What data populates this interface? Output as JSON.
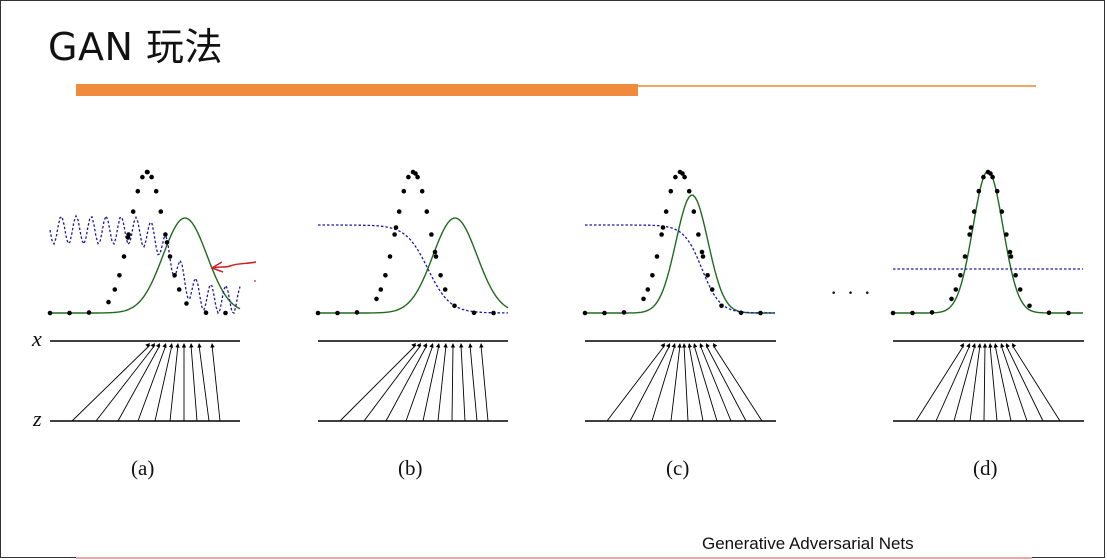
{
  "slide": {
    "title": "GAN 玩法",
    "footer": "Generative Adversarial Nets",
    "ellipsis": "· · ·"
  },
  "diagram": {
    "axis_labels": {
      "x": "x",
      "z": "z"
    },
    "panels": [
      {
        "caption": "(a)"
      },
      {
        "caption": "(b)"
      },
      {
        "caption": "(c)"
      },
      {
        "caption": "(d)"
      }
    ],
    "colors": {
      "data_dots": "#000000",
      "generator_curve": "#1f6b1f",
      "discriminator_curve": "#1a1aa6",
      "annotation_arrow": "#cc2222",
      "accent_bar": "#f08a3c"
    }
  }
}
